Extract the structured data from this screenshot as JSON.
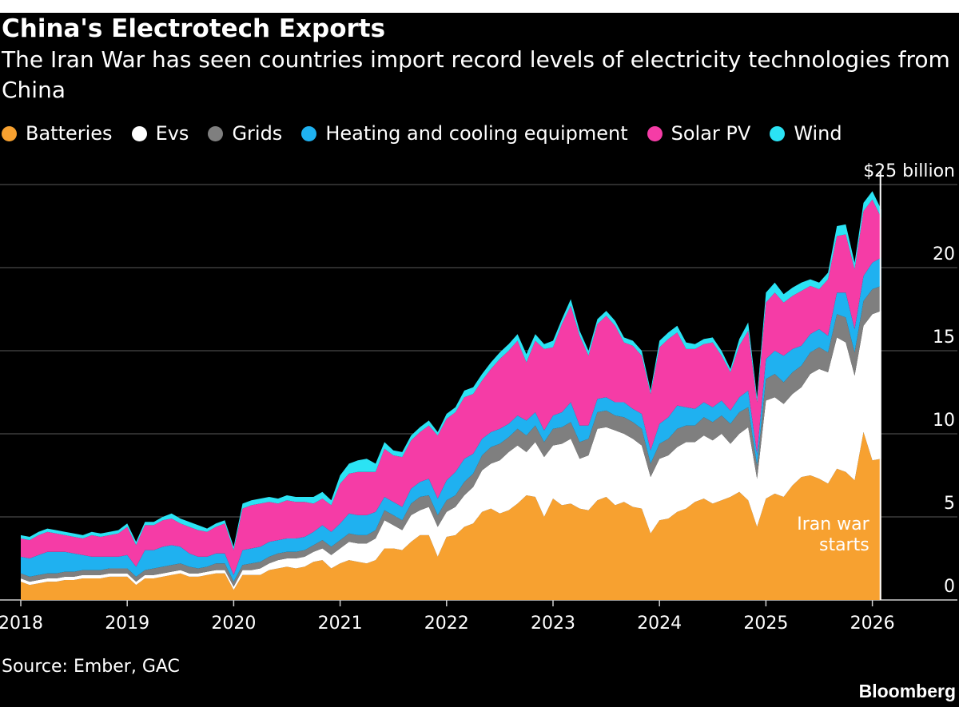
{
  "title": "China's Electrotech Exports",
  "subtitle": "The Iran War has seen countries import record levels of electricity technologies from China",
  "source": "Source: Ember, GAC",
  "brand": "Bloomberg",
  "chart_data": {
    "type": "area",
    "stacked": true,
    "x_start": "2018-01",
    "x_tick_labels": [
      "2018",
      "2019",
      "2020",
      "2021",
      "2022",
      "2023",
      "2024",
      "2025",
      "2026"
    ],
    "y_tick_labels": [
      "0",
      "5",
      "10",
      "15",
      "20",
      "$25 billion"
    ],
    "y_ticks": [
      0,
      5,
      10,
      15,
      20,
      25
    ],
    "ylim": [
      0,
      27
    ],
    "grid": true,
    "legend_position": "top",
    "annotation": {
      "date": "2026-02",
      "text_line1": "Iran war",
      "text_line2": "starts"
    },
    "series": [
      {
        "name": "Batteries",
        "color": "#f7a130",
        "values": [
          1.1,
          0.9,
          1.0,
          1.1,
          1.1,
          1.2,
          1.2,
          1.3,
          1.3,
          1.3,
          1.4,
          1.4,
          1.4,
          0.9,
          1.3,
          1.3,
          1.4,
          1.5,
          1.6,
          1.4,
          1.4,
          1.5,
          1.6,
          1.6,
          0.6,
          1.5,
          1.5,
          1.5,
          1.8,
          1.9,
          2.0,
          1.9,
          2.0,
          2.3,
          2.4,
          1.9,
          2.2,
          2.4,
          2.3,
          2.2,
          2.4,
          3.1,
          3.1,
          3.0,
          3.5,
          3.9,
          3.9,
          2.6,
          3.8,
          3.9,
          4.4,
          4.6,
          5.3,
          5.5,
          5.2,
          5.4,
          5.8,
          6.3,
          6.2,
          5.0,
          6.1,
          5.7,
          5.8,
          5.5,
          5.4,
          6.0,
          6.2,
          5.7,
          5.9,
          5.6,
          5.5,
          4.0,
          4.8,
          4.9,
          5.3,
          5.5,
          5.9,
          6.1,
          5.8,
          6.0,
          6.2,
          6.5,
          6.0,
          4.4,
          6.1,
          6.4,
          6.2,
          6.9,
          7.4,
          7.5,
          7.3,
          7.0,
          7.9,
          7.7,
          7.2,
          10.1,
          8.4,
          8.5
        ]
      },
      {
        "name": "Evs",
        "color": "#ffffff",
        "values": [
          0.2,
          0.2,
          0.2,
          0.2,
          0.2,
          0.2,
          0.2,
          0.2,
          0.2,
          0.2,
          0.2,
          0.2,
          0.2,
          0.2,
          0.2,
          0.2,
          0.2,
          0.2,
          0.2,
          0.2,
          0.2,
          0.2,
          0.2,
          0.2,
          0.2,
          0.3,
          0.3,
          0.4,
          0.4,
          0.5,
          0.5,
          0.6,
          0.6,
          0.6,
          0.7,
          0.8,
          0.9,
          1.1,
          1.1,
          1.2,
          1.3,
          1.7,
          1.4,
          1.2,
          1.6,
          1.5,
          1.7,
          1.8,
          1.5,
          1.7,
          1.9,
          2.2,
          2.5,
          2.7,
          3.2,
          3.5,
          3.5,
          2.6,
          3.3,
          3.6,
          3.2,
          3.7,
          3.9,
          3.0,
          3.3,
          4.3,
          4.2,
          4.5,
          4.1,
          4.1,
          3.8,
          3.4,
          3.7,
          3.8,
          3.9,
          4.0,
          3.6,
          3.8,
          3.8,
          4.0,
          3.2,
          3.5,
          4.4,
          2.9,
          5.9,
          5.8,
          5.6,
          5.5,
          5.4,
          6.1,
          6.6,
          6.7,
          7.9,
          7.8,
          6.3,
          6.4,
          8.8,
          8.9
        ]
      },
      {
        "name": "Grids",
        "color": "#7f7f7f",
        "values": [
          0.3,
          0.3,
          0.3,
          0.3,
          0.3,
          0.3,
          0.3,
          0.3,
          0.3,
          0.3,
          0.3,
          0.3,
          0.3,
          0.3,
          0.3,
          0.4,
          0.4,
          0.4,
          0.4,
          0.4,
          0.3,
          0.3,
          0.4,
          0.4,
          0.3,
          0.3,
          0.4,
          0.4,
          0.4,
          0.4,
          0.4,
          0.4,
          0.4,
          0.4,
          0.5,
          0.5,
          0.5,
          0.5,
          0.5,
          0.5,
          0.5,
          0.6,
          0.6,
          0.6,
          0.7,
          0.8,
          0.7,
          0.7,
          0.7,
          0.7,
          0.8,
          0.8,
          0.9,
          1.0,
          1.0,
          0.9,
          1.0,
          1.0,
          1.0,
          0.9,
          1.0,
          1.0,
          1.0,
          1.0,
          1.0,
          1.0,
          1.0,
          0.9,
          1.0,
          1.0,
          1.0,
          0.8,
          0.9,
          1.0,
          1.1,
          1.0,
          1.0,
          1.1,
          1.1,
          1.1,
          1.2,
          1.3,
          1.2,
          0.8,
          1.3,
          1.4,
          1.3,
          1.3,
          1.3,
          1.3,
          1.3,
          1.2,
          1.4,
          1.5,
          1.4,
          1.5,
          1.5,
          1.5
        ]
      },
      {
        "name": "Heating and cooling equipment",
        "color": "#1fb1f0",
        "values": [
          1.0,
          1.1,
          1.2,
          1.3,
          1.3,
          1.2,
          1.1,
          0.9,
          0.8,
          0.8,
          0.7,
          0.7,
          0.8,
          0.6,
          1.2,
          1.1,
          1.2,
          1.2,
          1.0,
          0.8,
          0.7,
          0.6,
          0.6,
          0.6,
          0.4,
          0.9,
          0.9,
          0.9,
          0.9,
          0.8,
          0.8,
          0.8,
          0.8,
          0.8,
          0.9,
          0.9,
          1.0,
          1.2,
          1.2,
          1.2,
          1.1,
          0.8,
          0.8,
          0.8,
          0.9,
          0.9,
          1.0,
          1.0,
          1.2,
          1.4,
          1.4,
          1.2,
          1.0,
          0.9,
          0.9,
          0.8,
          0.8,
          0.9,
          0.8,
          0.7,
          0.8,
          0.9,
          1.2,
          1.0,
          0.8,
          0.8,
          0.8,
          0.8,
          0.9,
          0.8,
          0.9,
          0.8,
          1.2,
          1.3,
          1.4,
          1.1,
          1.0,
          0.9,
          0.9,
          0.9,
          0.8,
          0.9,
          1.0,
          0.7,
          1.2,
          1.4,
          1.6,
          1.4,
          1.2,
          1.1,
          1.1,
          1.0,
          1.3,
          1.5,
          1.4,
          1.5,
          1.6,
          1.7
        ]
      },
      {
        "name": "Solar PV",
        "color": "#f53ca6",
        "values": [
          1.1,
          1.1,
          1.2,
          1.2,
          1.1,
          1.0,
          1.0,
          1.0,
          1.3,
          1.2,
          1.3,
          1.4,
          1.7,
          1.3,
          1.5,
          1.5,
          1.6,
          1.6,
          1.4,
          1.6,
          1.6,
          1.5,
          1.6,
          1.8,
          1.5,
          2.5,
          2.6,
          2.6,
          2.4,
          2.2,
          2.3,
          2.2,
          2.1,
          1.7,
          1.6,
          1.6,
          2.4,
          2.4,
          2.6,
          2.6,
          2.4,
          2.9,
          2.8,
          3.0,
          2.9,
          3.0,
          3.2,
          3.8,
          3.7,
          3.6,
          3.7,
          3.6,
          3.5,
          3.8,
          4.2,
          4.4,
          4.5,
          3.5,
          4.3,
          4.9,
          4.1,
          5.3,
          5.8,
          5.4,
          4.2,
          4.5,
          4.9,
          4.6,
          3.6,
          3.8,
          3.5,
          3.4,
          4.6,
          4.7,
          4.4,
          3.5,
          3.6,
          3.5,
          3.9,
          2.7,
          2.3,
          3.1,
          3.6,
          3.1,
          3.4,
          3.5,
          3.2,
          3.2,
          3.3,
          2.9,
          2.4,
          3.4,
          3.4,
          3.5,
          3.6,
          3.9,
          3.8,
          2.4
        ]
      },
      {
        "name": "Wind",
        "color": "#2be3f4",
        "values": [
          0.2,
          0.2,
          0.2,
          0.2,
          0.2,
          0.2,
          0.2,
          0.2,
          0.2,
          0.2,
          0.2,
          0.2,
          0.2,
          0.2,
          0.2,
          0.2,
          0.2,
          0.3,
          0.3,
          0.3,
          0.3,
          0.2,
          0.2,
          0.2,
          0.2,
          0.3,
          0.3,
          0.3,
          0.3,
          0.3,
          0.3,
          0.3,
          0.3,
          0.4,
          0.4,
          0.3,
          0.5,
          0.6,
          0.7,
          0.8,
          0.5,
          0.4,
          0.3,
          0.3,
          0.3,
          0.3,
          0.3,
          0.2,
          0.3,
          0.3,
          0.4,
          0.4,
          0.4,
          0.4,
          0.4,
          0.4,
          0.4,
          0.5,
          0.4,
          0.3,
          0.4,
          0.3,
          0.4,
          0.3,
          0.3,
          0.3,
          0.3,
          0.3,
          0.3,
          0.3,
          0.3,
          0.2,
          0.4,
          0.4,
          0.4,
          0.4,
          0.3,
          0.3,
          0.3,
          0.3,
          0.2,
          0.4,
          0.5,
          0.3,
          0.6,
          0.6,
          0.5,
          0.5,
          0.5,
          0.4,
          0.4,
          0.4,
          0.6,
          0.6,
          0.4,
          0.5,
          0.5,
          0.5
        ]
      }
    ]
  }
}
